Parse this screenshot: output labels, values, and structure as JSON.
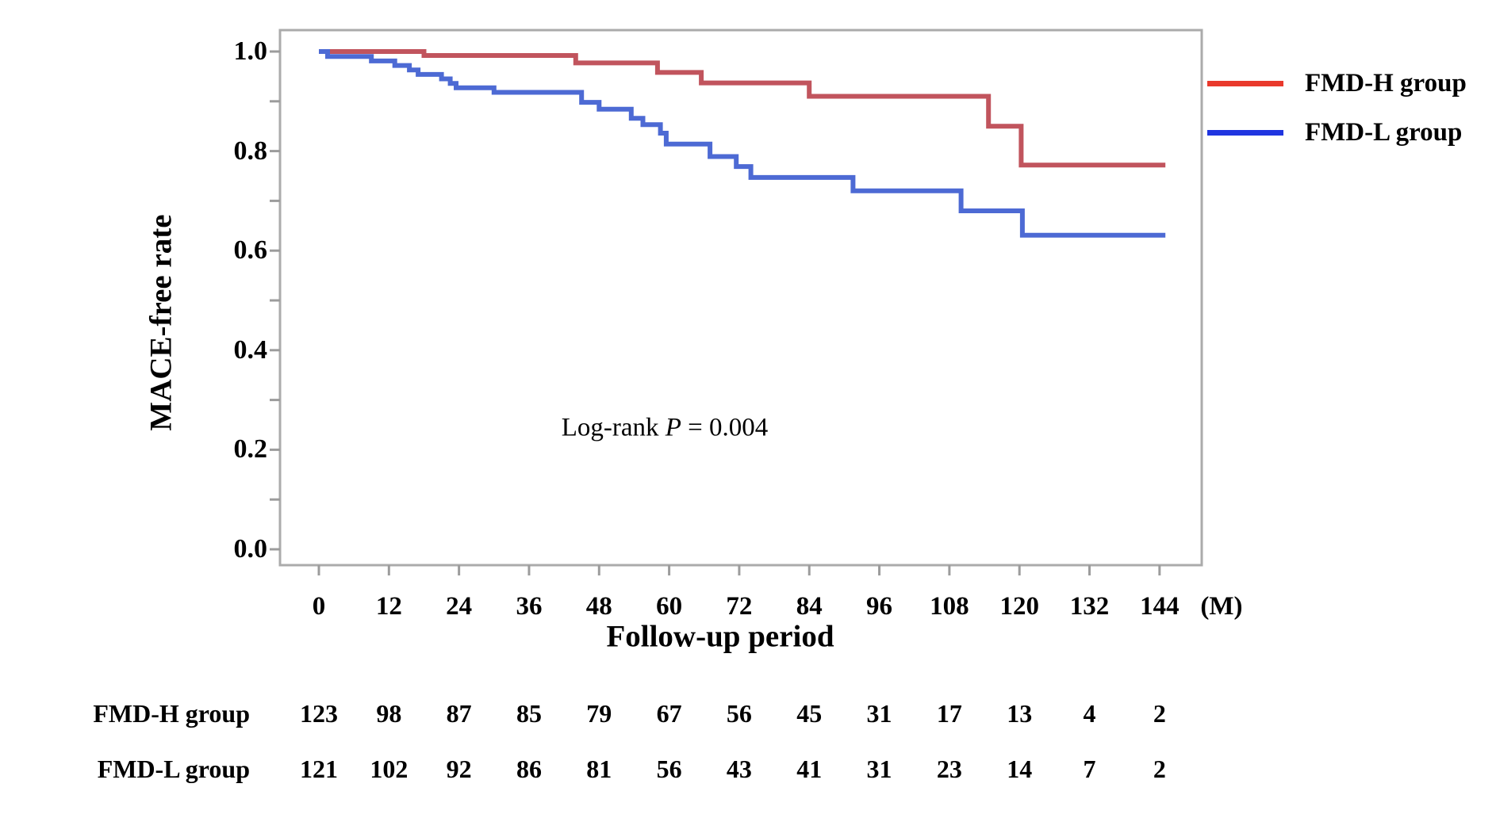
{
  "chart_data": {
    "type": "line",
    "subtype": "kaplan-meier-step",
    "title": "",
    "x_axis": {
      "label": "Follow-up period",
      "unit": "(M)",
      "ticks": [
        0,
        12,
        24,
        36,
        48,
        60,
        72,
        84,
        96,
        108,
        120,
        132,
        144
      ],
      "range": [
        0,
        151
      ]
    },
    "y_axis": {
      "label": "MACE-free rate",
      "major_ticks": [
        "1.0",
        "0.8",
        "0.6",
        "0.4",
        "0.2",
        "0.0"
      ],
      "major_tick_values": [
        1.0,
        0.8,
        0.6,
        0.4,
        0.2,
        0.0
      ],
      "minor_tick_values": [
        0.9,
        0.7,
        0.5,
        0.3,
        0.1
      ],
      "range": [
        0,
        1.05
      ],
      "grid": false
    },
    "annotation": {
      "prefix": "Log-rank ",
      "p_symbol": "P",
      "suffix": " = 0.004"
    },
    "legend_position": "upper right, outside plot",
    "series": [
      {
        "name": "FMD-H group",
        "color": "#c1545d",
        "legend_color": "#e9392c",
        "end_t": 145,
        "steps": [
          [
            0,
            1.0
          ],
          [
            18,
            0.992
          ],
          [
            44,
            0.977
          ],
          [
            58,
            0.958
          ],
          [
            65.5,
            0.937
          ],
          [
            84,
            0.91
          ],
          [
            114.7,
            0.85
          ],
          [
            120.3,
            0.772
          ]
        ]
      },
      {
        "name": "FMD-L group",
        "color": "#4d6ad4",
        "legend_color": "#2035e0",
        "end_t": 145,
        "steps": [
          [
            0,
            1.0
          ],
          [
            1.5,
            0.99
          ],
          [
            9,
            0.981
          ],
          [
            13,
            0.972
          ],
          [
            15.5,
            0.963
          ],
          [
            17,
            0.954
          ],
          [
            21,
            0.945
          ],
          [
            22.5,
            0.936
          ],
          [
            23.5,
            0.927
          ],
          [
            30,
            0.918
          ],
          [
            45,
            0.898
          ],
          [
            48,
            0.884
          ],
          [
            53.5,
            0.866
          ],
          [
            55.5,
            0.853
          ],
          [
            58.5,
            0.836
          ],
          [
            59.5,
            0.814
          ],
          [
            67,
            0.789
          ],
          [
            71.5,
            0.769
          ],
          [
            74,
            0.747
          ],
          [
            91.5,
            0.72
          ],
          [
            110,
            0.68
          ],
          [
            120.5,
            0.631
          ]
        ]
      }
    ],
    "risk_table": {
      "rows": [
        {
          "label": "FMD-H group",
          "values": [
            "123",
            "98",
            "87",
            "85",
            "79",
            "67",
            "56",
            "45",
            "31",
            "17",
            "13",
            "4",
            "2"
          ]
        },
        {
          "label": "FMD-L group",
          "values": [
            "121",
            "102",
            "92",
            "86",
            "81",
            "56",
            "43",
            "41",
            "31",
            "23",
            "14",
            "7",
            "2"
          ]
        }
      ]
    },
    "colors": {
      "axis_border": "#ababab",
      "tick_mark": "#9c9c9c",
      "text": "#000000",
      "background": "#ffffff"
    }
  }
}
